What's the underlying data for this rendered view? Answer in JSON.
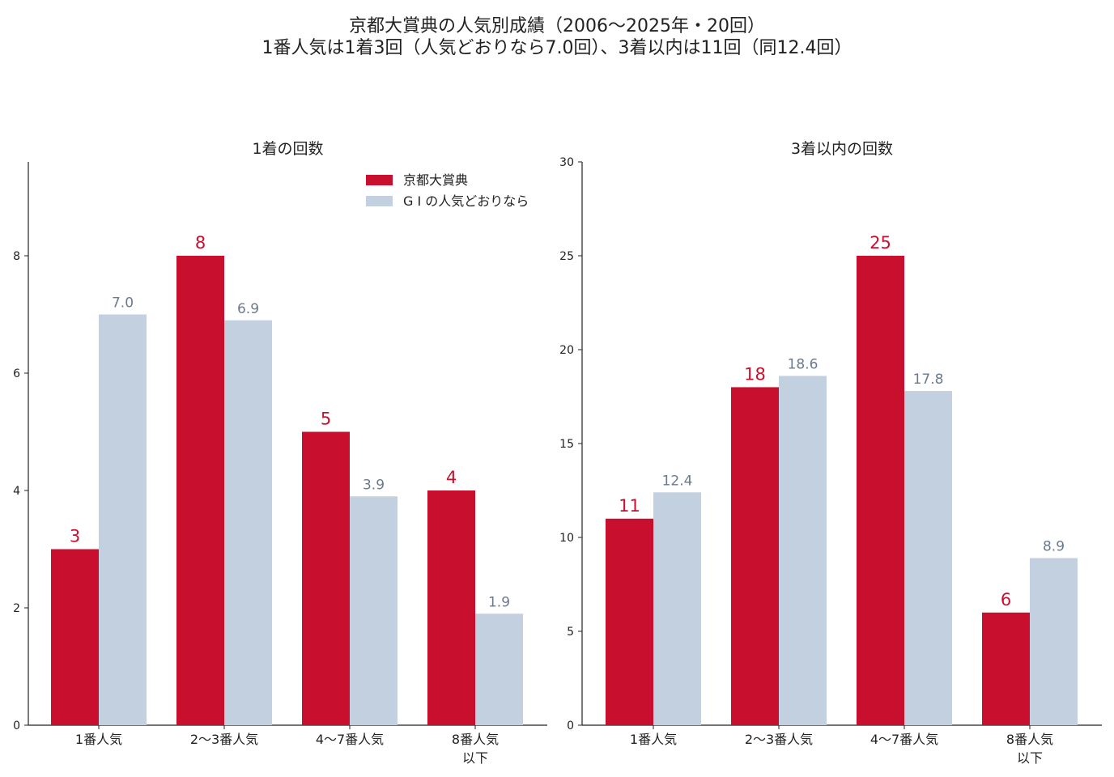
{
  "title_line1": "京都大賞典の人気別成績（2006〜2025年・20回）",
  "title_line2": "1番人気は1着3回（人気どおりなら7.0回）、3着以内は11回（同12.4回）",
  "colors": {
    "actual": "#c8102e",
    "expected": "#c3d0e0",
    "expected_label": "#6b7a8f",
    "axis": "#222222"
  },
  "chart_data": [
    {
      "type": "bar",
      "title": "1着の回数",
      "categories": [
        [
          "1番人気"
        ],
        [
          "2〜3番人気"
        ],
        [
          "4〜7番人気"
        ],
        [
          "8番人気",
          "以下"
        ]
      ],
      "series": [
        {
          "name": "京都大賞典",
          "values": [
            3,
            8,
            5,
            4
          ],
          "labels": [
            "3",
            "8",
            "5",
            "4"
          ]
        },
        {
          "name": "G I の人気どおりなら",
          "values": [
            7.0,
            6.9,
            3.9,
            1.9
          ],
          "labels": [
            "7.0",
            "6.9",
            "3.9",
            "1.9"
          ]
        }
      ],
      "ylim": [
        0,
        9.6
      ],
      "yticks": [
        0,
        2,
        4,
        6,
        8
      ],
      "legend": "top-right"
    },
    {
      "type": "bar",
      "title": "3着以内の回数",
      "categories": [
        [
          "1番人気"
        ],
        [
          "2〜3番人気"
        ],
        [
          "4〜7番人気"
        ],
        [
          "8番人気",
          "以下"
        ]
      ],
      "series": [
        {
          "name": "京都大賞典",
          "values": [
            11,
            18,
            25,
            6
          ],
          "labels": [
            "11",
            "18",
            "25",
            "6"
          ]
        },
        {
          "name": "G I の人気どおりなら",
          "values": [
            12.4,
            18.6,
            17.8,
            8.9
          ],
          "labels": [
            "12.4",
            "18.6",
            "17.8",
            "8.9"
          ]
        }
      ],
      "ylim": [
        0,
        30
      ],
      "yticks": [
        0,
        5,
        10,
        15,
        20,
        25,
        30
      ],
      "legend": "none"
    }
  ]
}
